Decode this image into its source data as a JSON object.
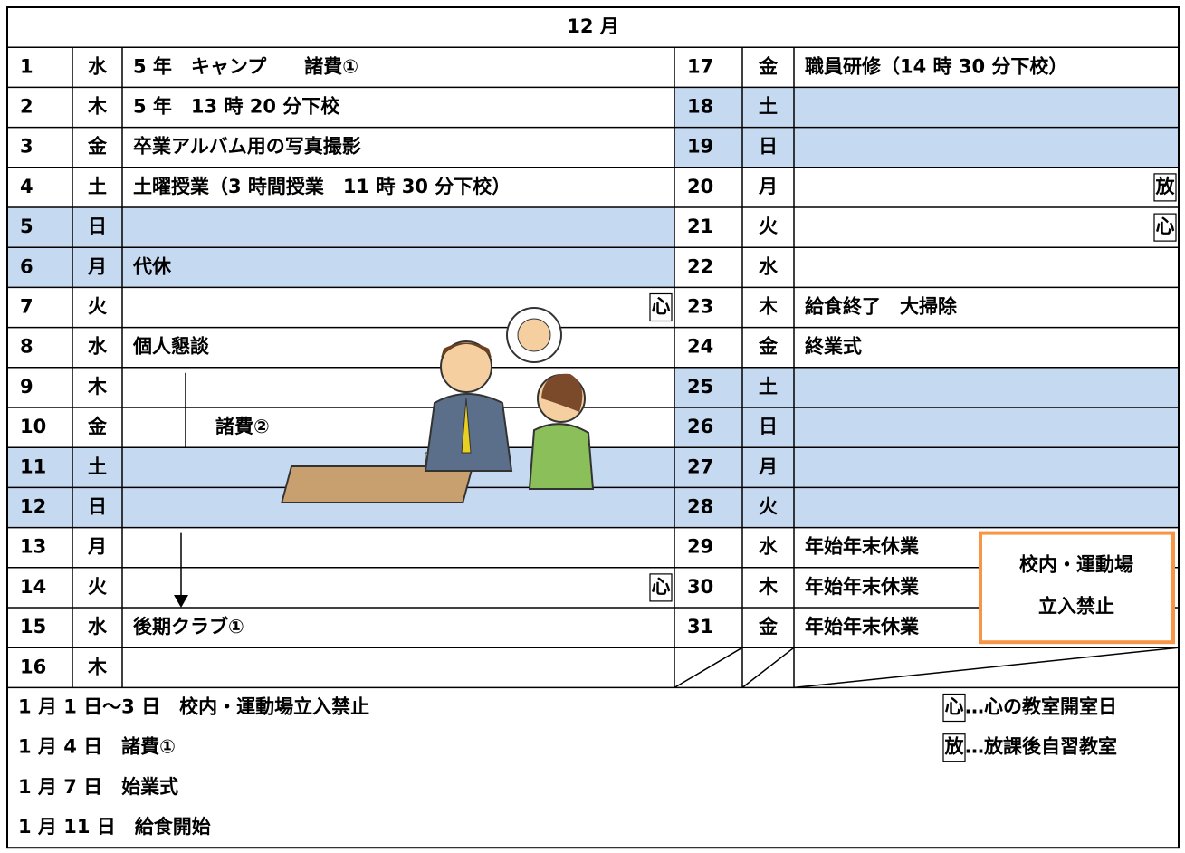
{
  "header": {
    "title": "12 月"
  },
  "table": {
    "left": [
      {
        "day": "1",
        "weekday": "水",
        "event": "5 年　キャンプ　　諸費①"
      },
      {
        "day": "2",
        "weekday": "木",
        "event": "5 年　13 時 20 分下校"
      },
      {
        "day": "3",
        "weekday": "金",
        "event": "卒業アルバム用の写真撮影"
      },
      {
        "day": "4",
        "weekday": "土",
        "event": "土曜授業（3 時間授業　11 時 30 分下校）"
      },
      {
        "day": "5",
        "weekday": "日",
        "shaded": true
      },
      {
        "day": "6",
        "weekday": "月",
        "event": "代休",
        "shaded": true
      },
      {
        "day": "7",
        "weekday": "火",
        "badge": "心"
      },
      {
        "day": "8",
        "weekday": "水",
        "event": "個人懇談"
      },
      {
        "day": "9",
        "weekday": "木"
      },
      {
        "day": "10",
        "weekday": "金"
      },
      {
        "day": "11",
        "weekday": "土",
        "shaded": true
      },
      {
        "day": "12",
        "weekday": "日",
        "shaded": true
      },
      {
        "day": "13",
        "weekday": "月"
      },
      {
        "day": "14",
        "weekday": "火",
        "badge": "心"
      },
      {
        "day": "15",
        "weekday": "水",
        "event": "後期クラブ①"
      },
      {
        "day": "16",
        "weekday": "木"
      }
    ],
    "right": [
      {
        "day": "17",
        "weekday": "金",
        "event": "職員研修（14 時 30 分下校）"
      },
      {
        "day": "18",
        "weekday": "土",
        "shaded": true
      },
      {
        "day": "19",
        "weekday": "日",
        "shaded": true
      },
      {
        "day": "20",
        "weekday": "月",
        "badge": "放"
      },
      {
        "day": "21",
        "weekday": "火",
        "badge": "心"
      },
      {
        "day": "22",
        "weekday": "水"
      },
      {
        "day": "23",
        "weekday": "木",
        "event": "給食終了　大掃除"
      },
      {
        "day": "24",
        "weekday": "金",
        "event": "終業式"
      },
      {
        "day": "25",
        "weekday": "土",
        "shaded": true
      },
      {
        "day": "26",
        "weekday": "日",
        "shaded": true
      },
      {
        "day": "27",
        "weekday": "月",
        "shaded": true
      },
      {
        "day": "28",
        "weekday": "火",
        "shaded": true
      },
      {
        "day": "29",
        "weekday": "水",
        "event": "年始年末休業"
      },
      {
        "day": "30",
        "weekday": "木",
        "event": "年始年末休業"
      },
      {
        "day": "31",
        "weekday": "金",
        "event": "年始年末休業"
      }
    ]
  },
  "annotations": {
    "range_note": "諸費②",
    "notice": [
      "校内・運動場",
      "立入禁止"
    ]
  },
  "footer": {
    "notes": [
      "1 月 1 日～3 日　校内・運動場立入禁止",
      "1 月 4 日　諸費①",
      "1 月 7 日　始業式",
      "1 月 11 日　給食開始"
    ],
    "legend": [
      {
        "badge": "心",
        "text": "…心の教室開室日"
      },
      {
        "badge": "放",
        "text": "…放課後自習教室"
      }
    ]
  }
}
